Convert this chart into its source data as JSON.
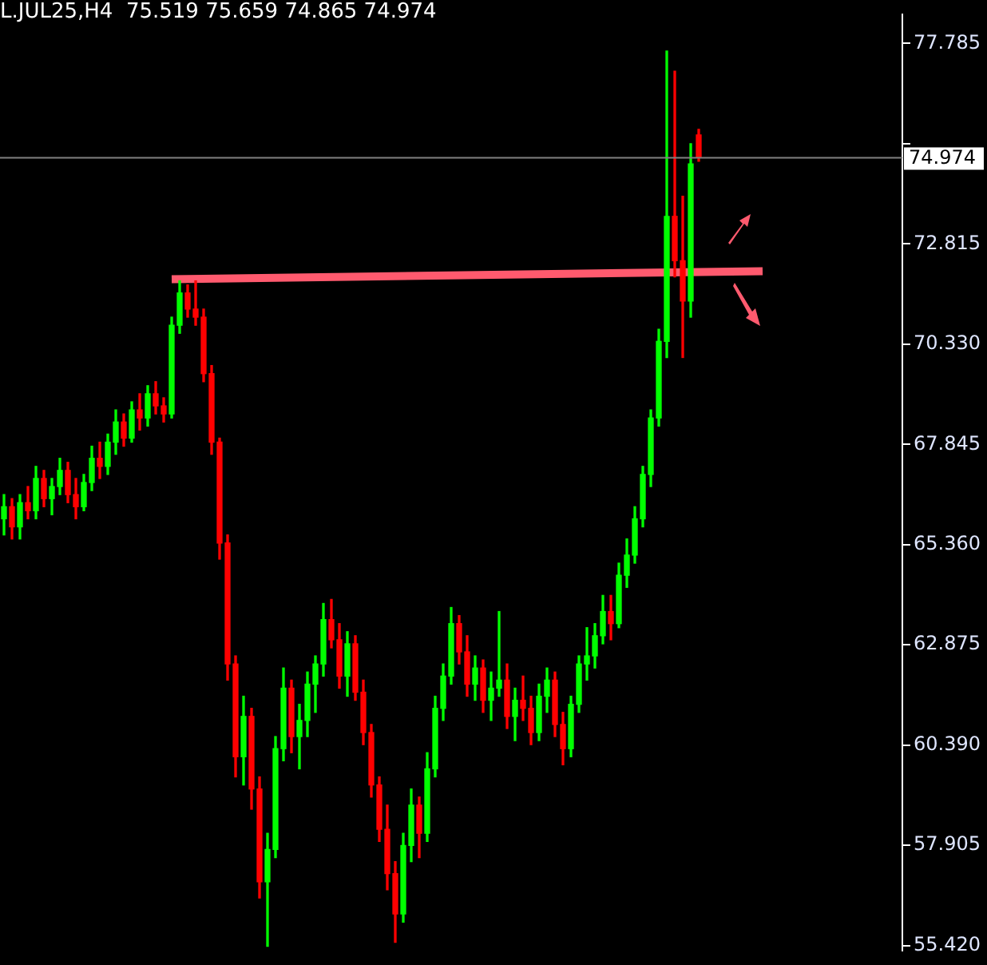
{
  "chart_data": {
    "type": "candlestick",
    "title": "L.JUL25,H4  75.519 75.659 74.865 74.974",
    "categories": [
      null,
      null,
      null,
      null,
      null,
      null,
      null,
      null,
      null,
      null,
      null,
      null,
      null,
      null,
      null,
      null,
      null,
      null,
      null,
      null,
      null,
      null,
      null,
      null,
      null,
      null,
      null,
      null,
      null,
      null,
      null,
      null,
      null,
      null,
      null,
      null,
      null,
      null,
      null,
      null,
      null,
      null,
      null,
      null,
      null,
      null,
      null,
      null,
      null,
      null,
      null,
      null,
      null,
      null,
      null,
      null,
      null,
      null,
      null,
      null,
      null,
      null,
      null,
      null,
      null,
      null,
      null,
      null,
      null,
      null,
      null,
      null,
      null,
      null,
      null,
      null,
      null,
      null,
      null,
      null,
      null,
      null,
      null,
      null,
      null,
      null,
      null,
      null,
      null,
      null,
      null,
      null,
      null,
      null,
      null,
      null,
      null,
      null,
      null,
      null,
      null,
      null,
      null,
      null,
      null,
      null,
      null,
      null,
      null,
      null,
      null,
      null,
      null
    ],
    "ohlc": [
      [
        66.0,
        66.6,
        65.6,
        66.3
      ],
      [
        66.3,
        66.5,
        65.5,
        65.8
      ],
      [
        65.8,
        66.6,
        65.5,
        66.4
      ],
      [
        66.4,
        66.8,
        66.0,
        66.2
      ],
      [
        66.2,
        67.3,
        66.0,
        67.0
      ],
      [
        67.0,
        67.2,
        66.3,
        66.5
      ],
      [
        66.5,
        67.0,
        66.1,
        66.8
      ],
      [
        66.8,
        67.5,
        66.6,
        67.2
      ],
      [
        67.2,
        67.4,
        66.4,
        66.6
      ],
      [
        66.6,
        67.0,
        66.0,
        66.3
      ],
      [
        66.3,
        67.1,
        66.2,
        66.9
      ],
      [
        66.9,
        67.8,
        66.7,
        67.5
      ],
      [
        67.5,
        67.9,
        67.0,
        67.3
      ],
      [
        67.3,
        68.1,
        67.1,
        67.9
      ],
      [
        67.9,
        68.7,
        67.6,
        68.4
      ],
      [
        68.4,
        68.6,
        67.8,
        68.0
      ],
      [
        68.0,
        68.9,
        67.9,
        68.7
      ],
      [
        68.7,
        69.1,
        68.2,
        68.5
      ],
      [
        68.5,
        69.3,
        68.3,
        69.1
      ],
      [
        69.1,
        69.4,
        68.6,
        68.8
      ],
      [
        68.8,
        69.0,
        68.4,
        68.6
      ],
      [
        68.6,
        71.0,
        68.5,
        70.8
      ],
      [
        70.8,
        71.9,
        70.6,
        71.6
      ],
      [
        71.6,
        71.8,
        71.0,
        71.2
      ],
      [
        71.2,
        71.9,
        70.8,
        71.0
      ],
      [
        71.0,
        71.2,
        69.4,
        69.6
      ],
      [
        69.6,
        69.8,
        67.6,
        67.9
      ],
      [
        67.9,
        68.0,
        65.0,
        65.4
      ],
      [
        65.4,
        65.6,
        62.0,
        62.4
      ],
      [
        62.4,
        62.6,
        59.6,
        60.1
      ],
      [
        60.1,
        61.6,
        59.4,
        61.1
      ],
      [
        61.1,
        61.3,
        58.8,
        59.3
      ],
      [
        59.3,
        59.6,
        56.6,
        57.0
      ],
      [
        57.0,
        58.2,
        55.4,
        57.8
      ],
      [
        57.8,
        60.6,
        57.6,
        60.3
      ],
      [
        60.3,
        62.3,
        60.0,
        61.8
      ],
      [
        61.8,
        62.0,
        60.2,
        60.6
      ],
      [
        60.6,
        61.4,
        59.8,
        61.0
      ],
      [
        61.0,
        62.2,
        60.6,
        61.9
      ],
      [
        61.9,
        62.6,
        61.2,
        62.4
      ],
      [
        62.4,
        63.9,
        62.1,
        63.5
      ],
      [
        63.5,
        64.0,
        62.8,
        63.0
      ],
      [
        63.0,
        63.4,
        61.8,
        62.1
      ],
      [
        62.1,
        63.2,
        61.6,
        62.9
      ],
      [
        62.9,
        63.1,
        61.5,
        61.7
      ],
      [
        61.7,
        62.0,
        60.4,
        60.7
      ],
      [
        60.7,
        60.9,
        59.1,
        59.4
      ],
      [
        59.4,
        59.6,
        58.0,
        58.3
      ],
      [
        58.3,
        58.9,
        56.8,
        57.2
      ],
      [
        57.2,
        57.5,
        55.5,
        56.2
      ],
      [
        56.2,
        58.2,
        56.0,
        57.9
      ],
      [
        57.9,
        59.3,
        57.5,
        58.9
      ],
      [
        58.9,
        59.1,
        57.6,
        58.2
      ],
      [
        58.2,
        60.2,
        58.0,
        59.8
      ],
      [
        59.8,
        61.6,
        59.6,
        61.3
      ],
      [
        61.3,
        62.4,
        61.0,
        62.1
      ],
      [
        62.1,
        63.8,
        61.9,
        63.4
      ],
      [
        63.4,
        63.6,
        62.4,
        62.7
      ],
      [
        62.7,
        63.1,
        61.6,
        61.9
      ],
      [
        61.9,
        62.6,
        61.5,
        62.3
      ],
      [
        62.3,
        62.5,
        61.2,
        61.5
      ],
      [
        61.5,
        62.2,
        61.0,
        61.8
      ],
      [
        61.8,
        63.7,
        61.6,
        62.0
      ],
      [
        62.0,
        62.4,
        60.8,
        61.1
      ],
      [
        61.1,
        61.8,
        60.5,
        61.5
      ],
      [
        61.5,
        62.1,
        61.0,
        61.3
      ],
      [
        61.3,
        61.6,
        60.4,
        60.7
      ],
      [
        60.7,
        61.9,
        60.5,
        61.6
      ],
      [
        61.6,
        62.3,
        61.2,
        62.0
      ],
      [
        62.0,
        62.2,
        60.6,
        60.9
      ],
      [
        60.9,
        61.2,
        59.9,
        60.3
      ],
      [
        60.3,
        61.6,
        60.1,
        61.4
      ],
      [
        61.4,
        62.6,
        61.2,
        62.4
      ],
      [
        62.4,
        63.3,
        62.0,
        62.6
      ],
      [
        62.6,
        63.4,
        62.3,
        63.1
      ],
      [
        63.1,
        64.1,
        62.9,
        63.7
      ],
      [
        63.7,
        64.1,
        63.0,
        63.4
      ],
      [
        63.4,
        64.9,
        63.3,
        64.6
      ],
      [
        64.6,
        65.5,
        64.3,
        65.1
      ],
      [
        65.1,
        66.3,
        64.9,
        66.0
      ],
      [
        66.0,
        67.3,
        65.8,
        67.1
      ],
      [
        67.1,
        68.7,
        66.8,
        68.5
      ],
      [
        68.5,
        70.7,
        68.3,
        70.4
      ],
      [
        70.4,
        77.6,
        70.0,
        73.5
      ],
      [
        73.5,
        77.1,
        72.0,
        72.4
      ],
      [
        72.4,
        74.0,
        70.0,
        71.4
      ],
      [
        71.4,
        75.3,
        71.0,
        74.8
      ],
      [
        75.519,
        75.659,
        74.865,
        74.974
      ],
      null,
      null,
      null,
      null,
      null,
      null,
      null,
      null,
      null,
      null,
      null,
      null,
      null,
      null,
      null,
      null,
      null,
      null,
      null,
      null,
      null,
      null,
      null,
      null,
      null
    ],
    "colors": [
      "#00ff00",
      "#ff0000",
      "#00ff00",
      "#ff0000",
      "#00ff00",
      "#ff0000",
      "#00ff00",
      "#00ff00",
      "#ff0000",
      "#ff0000",
      "#00ff00",
      "#00ff00",
      "#ff0000",
      "#00ff00",
      "#00ff00",
      "#ff0000",
      "#00ff00",
      "#ff0000",
      "#00ff00",
      "#ff0000",
      "#ff0000",
      "#00ff00",
      "#00ff00",
      "#ff0000",
      "#ff0000",
      "#ff0000",
      "#ff0000",
      "#ff0000",
      "#ff0000",
      "#ff0000",
      "#00ff00",
      "#ff0000",
      "#ff0000",
      "#00ff00",
      "#00ff00",
      "#00ff00",
      "#ff0000",
      "#00ff00",
      "#00ff00",
      "#00ff00",
      "#00ff00",
      "#ff0000",
      "#ff0000",
      "#00ff00",
      "#ff0000",
      "#ff0000",
      "#ff0000",
      "#ff0000",
      "#ff0000",
      "#ff0000",
      "#00ff00",
      "#00ff00",
      "#ff0000",
      "#00ff00",
      "#00ff00",
      "#00ff00",
      "#00ff00",
      "#ff0000",
      "#ff0000",
      "#00ff00",
      "#ff0000",
      "#00ff00",
      "#00ff00",
      "#ff0000",
      "#00ff00",
      "#ff0000",
      "#ff0000",
      "#00ff00",
      "#00ff00",
      "#ff0000",
      "#ff0000",
      "#00ff00",
      "#00ff00",
      "#00ff00",
      "#00ff00",
      "#00ff00",
      "#ff0000",
      "#00ff00",
      "#00ff00",
      "#00ff00",
      "#00ff00",
      "#00ff00",
      "#00ff00",
      "#00ff00",
      "#ff0000",
      "#ff0000",
      "#00ff00",
      "#ff0000",
      null,
      null,
      null,
      null,
      null,
      null,
      null,
      null,
      null,
      null,
      null,
      null,
      null,
      null,
      null,
      null,
      null,
      null,
      null,
      null,
      null,
      null,
      null,
      null,
      null
    ],
    "series": [
      {
        "type": "line",
        "color": "#ff5a6e",
        "values": [
          null,
          null,
          null,
          null,
          null,
          null,
          null,
          null,
          null,
          null,
          null,
          null,
          null,
          null,
          null,
          null,
          null,
          null,
          null,
          null,
          null,
          71.94,
          null,
          null,
          null,
          null,
          null,
          null,
          null,
          null,
          null,
          null,
          null,
          null,
          null,
          null,
          null,
          null,
          null,
          null,
          null,
          null,
          null,
          null,
          null,
          null,
          null,
          null,
          null,
          null,
          null,
          null,
          null,
          null,
          null,
          null,
          null,
          null,
          null,
          null,
          null,
          null,
          null,
          null,
          null,
          null,
          null,
          null,
          null,
          null,
          null,
          null,
          null,
          null,
          null,
          null,
          null,
          null,
          null,
          null,
          null,
          null,
          null,
          null,
          null,
          null,
          null,
          null,
          null,
          null,
          null,
          null,
          null,
          null,
          null,
          72.14,
          null,
          null,
          null,
          null,
          null,
          null,
          null,
          null,
          null,
          null,
          null,
          null,
          null,
          null,
          null,
          null,
          null
        ]
      }
    ],
    "ylim": [
      55.3,
      78.5
    ],
    "yticks": [
      {
        "value": 55.42,
        "label": "55.420"
      },
      57.905,
      {
        "value": 60.39,
        "label": "60.390"
      },
      62.875,
      {
        "value": 65.36,
        "label": "65.360"
      },
      67.845,
      {
        "value": 70.33,
        "label": "70.330"
      },
      72.815,
      {
        "value": 75.3,
        "label": null
      },
      77.785
    ],
    "tick_labels": "y",
    "ref_lines": [
      {
        "axis": "y",
        "value": 74.974,
        "label": "74.974",
        "color": "#808080"
      }
    ]
  }
}
